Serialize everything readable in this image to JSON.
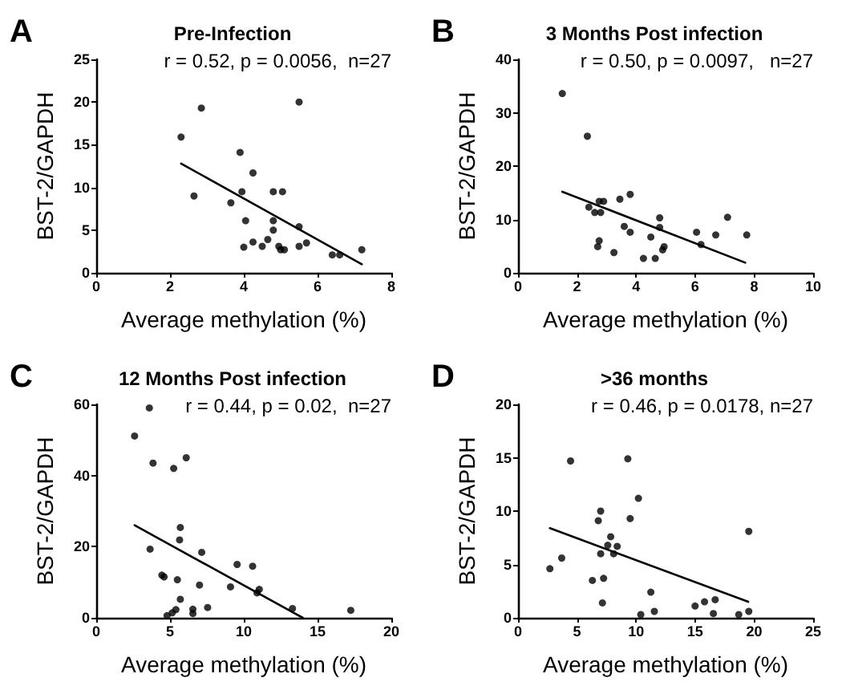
{
  "chart_data": [
    {
      "type": "scatter",
      "title": "Pre-Infection",
      "xlabel": "Average methylation (%)",
      "ylabel": "BST-2/GAPDH",
      "annotations": [
        "A",
        "r = 0.52, p = 0.0056,  n=27"
      ],
      "xlim": [
        0,
        8
      ],
      "xticks": [
        0,
        2,
        4,
        6,
        8
      ],
      "ylim": [
        0,
        25
      ],
      "yticks": [
        0,
        5,
        10,
        15,
        20,
        25
      ],
      "grid": false,
      "series": [
        {
          "marker": "circle",
          "color": "#000000",
          "x": [
            2.3,
            2.85,
            2.65,
            3.9,
            4.25,
            3.95,
            3.65,
            4.05,
            4.8,
            5.05,
            5.5,
            4.8,
            4.8,
            4.0,
            4.25,
            4.5,
            4.65,
            4.95,
            5.0,
            5.1,
            5.5,
            5.5,
            5.7,
            6.4,
            6.6,
            7.2
          ],
          "values": [
            15.9,
            19.3,
            9.0,
            14.1,
            11.7,
            9.5,
            8.2,
            6.1,
            9.5,
            9.5,
            20,
            6.1,
            5.0,
            3.0,
            3.6,
            3.1,
            3.9,
            3.1,
            2.7,
            2.7,
            5.4,
            3.1,
            3.5,
            2.1,
            2.1,
            2.7
          ]
        },
        {
          "type": "line",
          "marker": "none",
          "color": "#000000",
          "x": [
            2.3,
            7.2
          ],
          "values": [
            12.8,
            1.0
          ]
        }
      ]
    },
    {
      "type": "scatter",
      "title": "3 Months Post infection",
      "xlabel": "Average methylation (%)",
      "ylabel": "BST-2/GAPDH",
      "annotations": [
        "B",
        "r = 0.50, p = 0.0097,   n=27"
      ],
      "xlim": [
        0,
        10
      ],
      "xticks": [
        0,
        2,
        4,
        6,
        8,
        10
      ],
      "ylim": [
        0,
        40
      ],
      "yticks": [
        0,
        10,
        20,
        30,
        40
      ],
      "grid": false,
      "series": [
        {
          "marker": "circle",
          "color": "#000000",
          "x": [
            1.5,
            2.35,
            2.4,
            2.6,
            2.8,
            2.75,
            2.9,
            2.7,
            2.75,
            3.25,
            3.45,
            3.6,
            3.8,
            3.8,
            4.25,
            4.5,
            4.65,
            4.8,
            4.8,
            4.9,
            4.95,
            6.05,
            6.2,
            6.7,
            7.1,
            7.75
          ],
          "values": [
            33.6,
            25.6,
            12.3,
            11.3,
            11.3,
            13.4,
            13.4,
            4.9,
            6.0,
            3.8,
            13.8,
            8.7,
            14.7,
            7.6,
            2.7,
            6.7,
            2.7,
            10.3,
            8.5,
            4.3,
            4.9,
            7.6,
            5.3,
            7.1,
            10.4,
            7.1
          ]
        },
        {
          "type": "line",
          "marker": "none",
          "color": "#000000",
          "x": [
            1.5,
            7.7
          ],
          "values": [
            15.2,
            1.9
          ]
        }
      ]
    },
    {
      "type": "scatter",
      "title": "12 Months Post infection",
      "xlabel": "Average methylation (%)",
      "ylabel": "BST-2/GAPDH",
      "annotations": [
        "C",
        "r = 0.44, p = 0.02,  n=27"
      ],
      "xlim": [
        0,
        20
      ],
      "xticks": [
        0,
        5,
        10,
        15,
        20
      ],
      "ylim": [
        0,
        60
      ],
      "yticks": [
        0,
        20,
        40,
        60
      ],
      "grid": false,
      "series": [
        {
          "marker": "circle",
          "color": "#000000",
          "x": [
            2.6,
            3.6,
            3.85,
            5.25,
            6.1,
            3.65,
            5.7,
            5.65,
            7.15,
            4.45,
            4.6,
            5.5,
            5.7,
            4.8,
            5.15,
            5.4,
            6.55,
            6.55,
            7.55,
            7.0,
            9.1,
            9.55,
            10.6,
            10.9,
            11.05,
            13.3,
            17.25
          ],
          "values": [
            51.1,
            59,
            43.5,
            42,
            45,
            19.3,
            25.4,
            21.9,
            18.4,
            12.0,
            11.5,
            10.7,
            5.2,
            0.6,
            1.4,
            2.3,
            2.4,
            1.2,
            2.9,
            9.2,
            8.7,
            15,
            14.5,
            7.0,
            8.0,
            2.6,
            2.1
          ]
        },
        {
          "type": "line",
          "marker": "none",
          "color": "#000000",
          "x": [
            2.6,
            14.0
          ],
          "values": [
            26,
            0
          ]
        }
      ]
    },
    {
      "type": "scatter",
      "title": ">36 months",
      "xlabel": "Average methylation (%)",
      "ylabel": "BST-2/GAPDH",
      "annotations": [
        "D",
        "r = 0.46, p = 0.0178, n=27"
      ],
      "xlim": [
        0,
        25
      ],
      "xticks": [
        0,
        5,
        10,
        15,
        20,
        25
      ],
      "ylim": [
        0,
        20
      ],
      "yticks": [
        0,
        5,
        10,
        15,
        20
      ],
      "grid": false,
      "series": [
        {
          "marker": "circle",
          "color": "#000000",
          "x": [
            2.7,
            3.7,
            4.45,
            6.3,
            6.8,
            7.0,
            7.0,
            7.25,
            7.15,
            7.6,
            7.85,
            8.1,
            8.4,
            9.3,
            9.5,
            10.2,
            10.4,
            11.25,
            11.55,
            15.0,
            15.8,
            16.7,
            16.55,
            18.7,
            19.55,
            19.55
          ],
          "values": [
            4.6,
            5.6,
            14.7,
            3.5,
            9.1,
            10.0,
            6.0,
            3.7,
            1.4,
            6.8,
            7.6,
            6.0,
            6.7,
            14.9,
            9.3,
            11.2,
            0.3,
            2.4,
            0.6,
            1.1,
            1.5,
            1.7,
            0.4,
            0.3,
            8.1,
            0.6
          ]
        },
        {
          "type": "line",
          "marker": "none",
          "color": "#000000",
          "x": [
            2.7,
            19.5
          ],
          "values": [
            8.4,
            1.5
          ]
        }
      ]
    }
  ]
}
